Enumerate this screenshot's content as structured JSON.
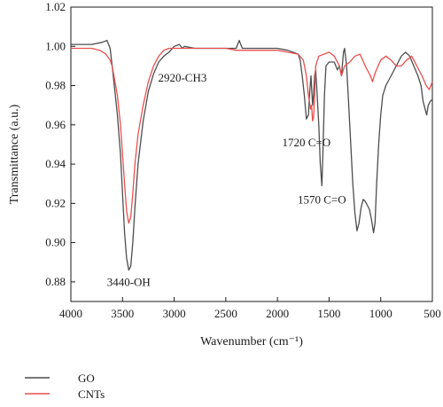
{
  "chart_data": {
    "type": "line",
    "xlabel": "Wavenumber (cm⁻¹)",
    "ylabel": "Transmittance (a.u.)",
    "xlim": [
      4000,
      500
    ],
    "ylim": [
      0.87,
      1.02
    ],
    "x_ticks": [
      "4000",
      "3500",
      "3000",
      "2500",
      "2000",
      "1500",
      "1000",
      "500"
    ],
    "y_ticks": [
      "0.88",
      "0.90",
      "0.92",
      "0.94",
      "0.96",
      "0.98",
      "1.00",
      "1.02"
    ],
    "grid": false,
    "legend_position": "below-left",
    "series": [
      {
        "name": "GO",
        "color": "#4d4d4d",
        "points": [
          [
            4000,
            1.001
          ],
          [
            3900,
            1.001
          ],
          [
            3800,
            1.001
          ],
          [
            3700,
            1.002
          ],
          [
            3650,
            1.003
          ],
          [
            3620,
            0.999
          ],
          [
            3600,
            0.99
          ],
          [
            3580,
            0.98
          ],
          [
            3550,
            0.965
          ],
          [
            3520,
            0.945
          ],
          [
            3500,
            0.925
          ],
          [
            3480,
            0.905
          ],
          [
            3460,
            0.892
          ],
          [
            3440,
            0.886
          ],
          [
            3420,
            0.888
          ],
          [
            3400,
            0.9
          ],
          [
            3380,
            0.918
          ],
          [
            3350,
            0.94
          ],
          [
            3300,
            0.962
          ],
          [
            3250,
            0.977
          ],
          [
            3200,
            0.986
          ],
          [
            3150,
            0.992
          ],
          [
            3100,
            0.995
          ],
          [
            3050,
            0.997
          ],
          [
            3000,
            1.0
          ],
          [
            2950,
            1.001
          ],
          [
            2920,
            0.999
          ],
          [
            2900,
            1.0
          ],
          [
            2800,
            0.999
          ],
          [
            2700,
            0.999
          ],
          [
            2600,
            0.999
          ],
          [
            2500,
            0.999
          ],
          [
            2400,
            0.999
          ],
          [
            2370,
            1.003
          ],
          [
            2340,
            0.999
          ],
          [
            2200,
            0.999
          ],
          [
            2100,
            0.999
          ],
          [
            2000,
            0.999
          ],
          [
            1900,
            0.998
          ],
          [
            1850,
            0.997
          ],
          [
            1800,
            0.996
          ],
          [
            1780,
            0.993
          ],
          [
            1760,
            0.985
          ],
          [
            1740,
            0.975
          ],
          [
            1720,
            0.963
          ],
          [
            1700,
            0.965
          ],
          [
            1690,
            0.975
          ],
          [
            1675,
            0.985
          ],
          [
            1660,
            0.97
          ],
          [
            1650,
            0.975
          ],
          [
            1640,
            0.985
          ],
          [
            1630,
            0.988
          ],
          [
            1620,
            0.98
          ],
          [
            1600,
            0.96
          ],
          [
            1585,
            0.94
          ],
          [
            1570,
            0.929
          ],
          [
            1560,
            0.945
          ],
          [
            1545,
            0.975
          ],
          [
            1530,
            0.99
          ],
          [
            1500,
            0.992
          ],
          [
            1450,
            0.992
          ],
          [
            1420,
            0.988
          ],
          [
            1400,
            0.99
          ],
          [
            1380,
            0.985
          ],
          [
            1360,
            0.997
          ],
          [
            1350,
            0.999
          ],
          [
            1330,
            0.99
          ],
          [
            1310,
            0.97
          ],
          [
            1290,
            0.95
          ],
          [
            1270,
            0.93
          ],
          [
            1250,
            0.915
          ],
          [
            1230,
            0.906
          ],
          [
            1210,
            0.91
          ],
          [
            1190,
            0.918
          ],
          [
            1170,
            0.922
          ],
          [
            1150,
            0.921
          ],
          [
            1130,
            0.919
          ],
          [
            1110,
            0.917
          ],
          [
            1090,
            0.912
          ],
          [
            1070,
            0.905
          ],
          [
            1055,
            0.91
          ],
          [
            1040,
            0.93
          ],
          [
            1020,
            0.95
          ],
          [
            1000,
            0.965
          ],
          [
            980,
            0.975
          ],
          [
            950,
            0.98
          ],
          [
            900,
            0.985
          ],
          [
            850,
            0.99
          ],
          [
            800,
            0.995
          ],
          [
            760,
            0.997
          ],
          [
            720,
            0.995
          ],
          [
            680,
            0.99
          ],
          [
            640,
            0.985
          ],
          [
            610,
            0.98
          ],
          [
            590,
            0.972
          ],
          [
            570,
            0.968
          ],
          [
            555,
            0.965
          ],
          [
            540,
            0.97
          ],
          [
            520,
            0.972
          ],
          [
            500,
            0.973
          ]
        ]
      },
      {
        "name": "CNTs",
        "color": "#e8504f",
        "points": [
          [
            4000,
            0.999
          ],
          [
            3900,
            0.999
          ],
          [
            3800,
            0.999
          ],
          [
            3720,
            0.998
          ],
          [
            3660,
            0.996
          ],
          [
            3620,
            0.993
          ],
          [
            3600,
            0.99
          ],
          [
            3580,
            0.984
          ],
          [
            3550,
            0.975
          ],
          [
            3520,
            0.96
          ],
          [
            3500,
            0.945
          ],
          [
            3480,
            0.93
          ],
          [
            3460,
            0.916
          ],
          [
            3440,
            0.91
          ],
          [
            3420,
            0.913
          ],
          [
            3400,
            0.925
          ],
          [
            3380,
            0.94
          ],
          [
            3350,
            0.955
          ],
          [
            3300,
            0.97
          ],
          [
            3250,
            0.982
          ],
          [
            3200,
            0.99
          ],
          [
            3150,
            0.995
          ],
          [
            3100,
            0.998
          ],
          [
            3050,
            0.999
          ],
          [
            3000,
            0.999
          ],
          [
            2900,
            0.999
          ],
          [
            2800,
            0.999
          ],
          [
            2700,
            0.999
          ],
          [
            2600,
            0.999
          ],
          [
            2500,
            0.999
          ],
          [
            2400,
            0.998
          ],
          [
            2300,
            0.998
          ],
          [
            2200,
            0.998
          ],
          [
            2100,
            0.998
          ],
          [
            2000,
            0.998
          ],
          [
            1900,
            0.997
          ],
          [
            1800,
            0.996
          ],
          [
            1750,
            0.993
          ],
          [
            1720,
            0.985
          ],
          [
            1700,
            0.975
          ],
          [
            1690,
            0.972
          ],
          [
            1680,
            0.968
          ],
          [
            1670,
            0.97
          ],
          [
            1660,
            0.962
          ],
          [
            1650,
            0.964
          ],
          [
            1640,
            0.975
          ],
          [
            1630,
            0.99
          ],
          [
            1600,
            0.995
          ],
          [
            1550,
            0.996
          ],
          [
            1500,
            0.997
          ],
          [
            1450,
            0.995
          ],
          [
            1400,
            0.99
          ],
          [
            1380,
            0.985
          ],
          [
            1350,
            0.99
          ],
          [
            1300,
            0.992
          ],
          [
            1250,
            0.995
          ],
          [
            1200,
            0.996
          ],
          [
            1150,
            0.99
          ],
          [
            1100,
            0.985
          ],
          [
            1080,
            0.982
          ],
          [
            1050,
            0.987
          ],
          [
            1000,
            0.993
          ],
          [
            950,
            0.995
          ],
          [
            900,
            0.993
          ],
          [
            850,
            0.99
          ],
          [
            800,
            0.99
          ],
          [
            750,
            0.993
          ],
          [
            700,
            0.995
          ],
          [
            650,
            0.99
          ],
          [
            600,
            0.985
          ],
          [
            560,
            0.98
          ],
          [
            530,
            0.978
          ],
          [
            500,
            0.982
          ]
        ]
      }
    ],
    "annotations": [
      {
        "text": "2920-CH3",
        "x": 2920,
        "y": 0.982
      },
      {
        "text": "1720 C=O",
        "x": 1720,
        "y": 0.949
      },
      {
        "text": "1570 C=O",
        "x": 1570,
        "y": 0.92
      },
      {
        "text": "3440-OH",
        "x": 3440,
        "y": 0.878
      }
    ]
  }
}
